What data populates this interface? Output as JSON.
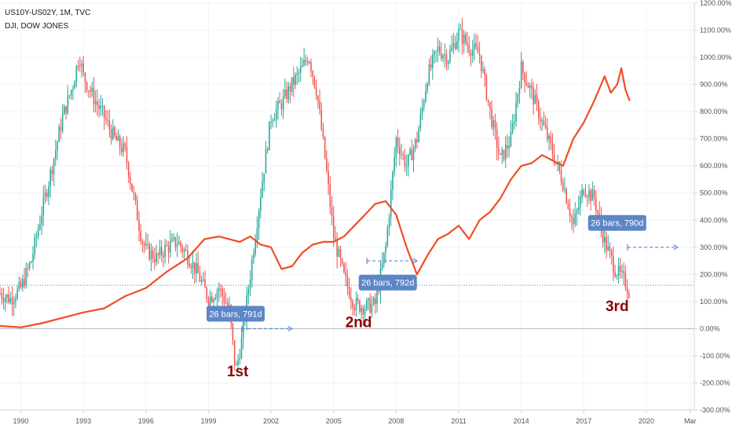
{
  "header": {
    "symbol_line": "US10Y-US02Y, 1M, TVC",
    "compare_line": "DJI, DOW JONES"
  },
  "colors": {
    "up": "#26a69a",
    "down": "#ef5350",
    "dji": "#f04e23",
    "grid": "#f0f3fa",
    "zero": "#b2b5be",
    "last_value": "#26a69a",
    "label_bg": "#5d86c7",
    "annotation_text": "#8b0000",
    "axis_text": "#50535e"
  },
  "chart_data": {
    "type": "line",
    "title": "US10Y-US02Y, 1M, TVC",
    "y_axis": {
      "unit": "%",
      "range": [
        -300,
        1200
      ],
      "ticks": [
        "1200.00%",
        "1100.00%",
        "1000.00%",
        "900.00%",
        "800.00%",
        "700.00%",
        "600.00%",
        "500.00%",
        "400.00%",
        "300.00%",
        "200.00%",
        "100.00%",
        "0.00%",
        "-100.00%",
        "-200.00%",
        "-300.00%"
      ],
      "tick_values": [
        1200,
        1100,
        1000,
        900,
        800,
        700,
        600,
        500,
        400,
        300,
        200,
        100,
        0,
        -100,
        -200,
        -300
      ]
    },
    "x_axis": {
      "range": [
        1989.0,
        2022.3
      ],
      "tick_labels": [
        "1990",
        "1993",
        "1996",
        "1999",
        "2002",
        "2005",
        "2008",
        "2011",
        "2014",
        "2017",
        "2020",
        "Mar"
      ],
      "tick_positions": [
        1990,
        1993,
        1996,
        1999,
        2002,
        2005,
        2008,
        2011,
        2014,
        2017,
        2020,
        2022.1
      ]
    },
    "series": [
      {
        "name": "US10Y-US02Y, 1M, TVC",
        "style": "candles",
        "points": [
          [
            1989.0,
            130
          ],
          [
            1989.5,
            110
          ],
          [
            1990.0,
            150
          ],
          [
            1990.5,
            250
          ],
          [
            1991.0,
            430
          ],
          [
            1991.5,
            600
          ],
          [
            1992.0,
            780
          ],
          [
            1992.5,
            900
          ],
          [
            1992.8,
            1010
          ],
          [
            1993.0,
            930
          ],
          [
            1993.5,
            850
          ],
          [
            1994.0,
            780
          ],
          [
            1994.5,
            700
          ],
          [
            1995.0,
            650
          ],
          [
            1995.5,
            450
          ],
          [
            1995.8,
            330
          ],
          [
            1996.0,
            290
          ],
          [
            1996.5,
            260
          ],
          [
            1997.0,
            300
          ],
          [
            1997.5,
            320
          ],
          [
            1998.0,
            270
          ],
          [
            1998.5,
            200
          ],
          [
            1999.0,
            110
          ],
          [
            1999.5,
            150
          ],
          [
            2000.0,
            70
          ],
          [
            2000.3,
            -160
          ],
          [
            2000.6,
            -40
          ],
          [
            2001.0,
            200
          ],
          [
            2001.5,
            500
          ],
          [
            2002.0,
            780
          ],
          [
            2002.5,
            830
          ],
          [
            2003.0,
            900
          ],
          [
            2003.5,
            960
          ],
          [
            2003.8,
            1010
          ],
          [
            2004.2,
            870
          ],
          [
            2004.6,
            620
          ],
          [
            2005.0,
            340
          ],
          [
            2005.5,
            190
          ],
          [
            2006.0,
            90
          ],
          [
            2006.5,
            80
          ],
          [
            2007.0,
            90
          ],
          [
            2007.5,
            300
          ],
          [
            2008.0,
            700
          ],
          [
            2008.5,
            600
          ],
          [
            2009.0,
            700
          ],
          [
            2009.5,
            930
          ],
          [
            2010.0,
            1030
          ],
          [
            2010.5,
            1000
          ],
          [
            2011.0,
            1090
          ],
          [
            2011.5,
            1040
          ],
          [
            2012.0,
            1010
          ],
          [
            2012.5,
            800
          ],
          [
            2013.0,
            620
          ],
          [
            2013.5,
            700
          ],
          [
            2014.0,
            960
          ],
          [
            2014.5,
            870
          ],
          [
            2015.0,
            760
          ],
          [
            2015.5,
            650
          ],
          [
            2016.0,
            540
          ],
          [
            2016.5,
            380
          ],
          [
            2017.0,
            520
          ],
          [
            2017.5,
            480
          ],
          [
            2018.0,
            320
          ],
          [
            2018.5,
            220
          ],
          [
            2019.0,
            170
          ],
          [
            2019.2,
            130
          ]
        ]
      },
      {
        "name": "DJI, DOW JONES",
        "style": "line",
        "points": [
          [
            1989.0,
            10
          ],
          [
            1990.0,
            5
          ],
          [
            1991.0,
            20
          ],
          [
            1992.0,
            40
          ],
          [
            1993.0,
            60
          ],
          [
            1994.0,
            75
          ],
          [
            1995.0,
            120
          ],
          [
            1996.0,
            150
          ],
          [
            1997.0,
            210
          ],
          [
            1998.0,
            260
          ],
          [
            1998.8,
            330
          ],
          [
            1999.5,
            340
          ],
          [
            2000.0,
            330
          ],
          [
            2000.5,
            320
          ],
          [
            2001.0,
            340
          ],
          [
            2001.5,
            310
          ],
          [
            2002.0,
            300
          ],
          [
            2002.5,
            220
          ],
          [
            2003.0,
            230
          ],
          [
            2003.5,
            280
          ],
          [
            2004.0,
            310
          ],
          [
            2004.5,
            320
          ],
          [
            2005.0,
            320
          ],
          [
            2005.5,
            340
          ],
          [
            2006.0,
            380
          ],
          [
            2006.5,
            420
          ],
          [
            2007.0,
            460
          ],
          [
            2007.5,
            470
          ],
          [
            2008.0,
            420
          ],
          [
            2008.5,
            300
          ],
          [
            2009.0,
            200
          ],
          [
            2009.5,
            270
          ],
          [
            2010.0,
            330
          ],
          [
            2010.5,
            350
          ],
          [
            2011.0,
            380
          ],
          [
            2011.5,
            330
          ],
          [
            2012.0,
            400
          ],
          [
            2012.5,
            430
          ],
          [
            2013.0,
            480
          ],
          [
            2013.5,
            550
          ],
          [
            2014.0,
            600
          ],
          [
            2014.5,
            610
          ],
          [
            2015.0,
            640
          ],
          [
            2015.5,
            620
          ],
          [
            2016.0,
            600
          ],
          [
            2016.5,
            700
          ],
          [
            2017.0,
            760
          ],
          [
            2017.5,
            840
          ],
          [
            2018.0,
            930
          ],
          [
            2018.3,
            870
          ],
          [
            2018.6,
            900
          ],
          [
            2018.8,
            960
          ],
          [
            2019.0,
            880
          ],
          [
            2019.2,
            840
          ]
        ]
      }
    ],
    "reference_lines": [
      {
        "kind": "zero_line",
        "y": 0
      },
      {
        "kind": "last_value_line",
        "y": 160
      }
    ],
    "measure_labels": [
      {
        "text": "26 bars, 791d",
        "x": 2000.3,
        "y": 55
      },
      {
        "text": "26 bars, 792d",
        "x": 2007.6,
        "y": 170
      },
      {
        "text": "26 bars, 790d",
        "x": 2018.6,
        "y": 390
      }
    ],
    "measure_arrows": [
      {
        "x_start": 2000.6,
        "x_end": 2003.0,
        "y": 0
      },
      {
        "x_start": 2006.6,
        "x_end": 2009.0,
        "y": 250
      },
      {
        "x_start": 2019.1,
        "x_end": 2021.5,
        "y": 300
      }
    ],
    "annotations": [
      {
        "text": "1st",
        "x": 2000.4,
        "y": -175
      },
      {
        "text": "2nd",
        "x": 2006.2,
        "y": 5
      },
      {
        "text": "3rd",
        "x": 2018.6,
        "y": 65
      }
    ],
    "legend_position": "top-left",
    "grid": true
  }
}
